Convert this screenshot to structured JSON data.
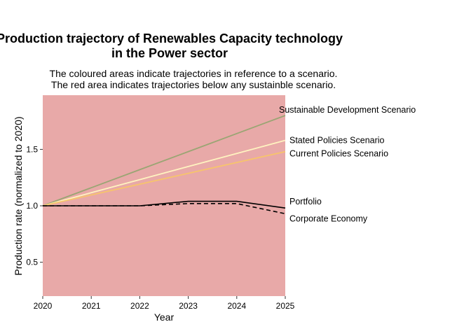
{
  "chart_data": {
    "type": "line",
    "title_lines": [
      "Production trajectory of Renewables Capacity technology",
      "in the Power sector"
    ],
    "subtitle_lines": [
      "The coloured areas indicate trajectories in reference to a scenario.",
      "The red area indicates trajectories below any sustainble scenario."
    ],
    "xlabel": "Year",
    "ylabel": "Production rate (normalized to 2020)",
    "x": [
      2020,
      2021,
      2022,
      2023,
      2024,
      2025
    ],
    "x_ticks": [
      "2020",
      "2021",
      "2022",
      "2023",
      "2024",
      "2025"
    ],
    "xlim": [
      2020,
      2025
    ],
    "ylim": [
      0.2,
      1.98
    ],
    "y_ticks": [
      0.5,
      1.0,
      1.5
    ],
    "y_tick_labels": [
      "0.5",
      "1.0",
      "1.5"
    ],
    "grid": false,
    "legend": "direct labels at right end of lines",
    "background_area_color": "#e8a9a8",
    "series": [
      {
        "name": "Sustainable Development Scenario",
        "color": "#9aa573",
        "dash": "solid",
        "values": [
          1.0,
          1.16,
          1.32,
          1.48,
          1.64,
          1.8
        ]
      },
      {
        "name": "Stated Policies Scenario",
        "color": "#fff3c0",
        "dash": "solid",
        "values": [
          1.0,
          1.116,
          1.232,
          1.348,
          1.464,
          1.58
        ]
      },
      {
        "name": "Current Policies Scenario",
        "color": "#f7c46c",
        "dash": "solid",
        "values": [
          1.0,
          1.096,
          1.192,
          1.288,
          1.384,
          1.48
        ]
      },
      {
        "name": "Portfolio",
        "color": "#000000",
        "dash": "solid",
        "values": [
          1.0,
          1.0,
          1.0,
          1.04,
          1.04,
          0.98
        ]
      },
      {
        "name": "Corporate Economy",
        "color": "#000000",
        "dash": "dashed",
        "values": [
          1.0,
          1.0,
          1.0,
          1.02,
          1.02,
          0.93
        ]
      }
    ]
  }
}
